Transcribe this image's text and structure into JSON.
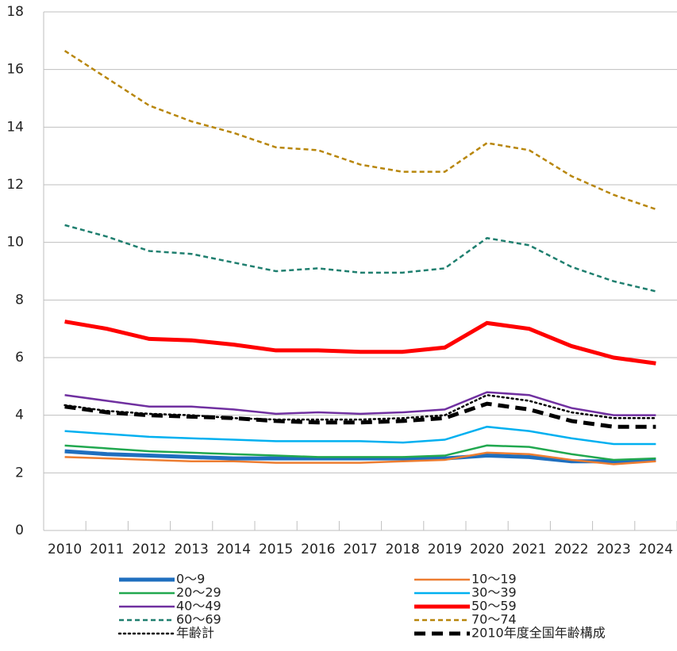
{
  "chart_data": {
    "type": "line",
    "x": [
      "2010",
      "2011",
      "2012",
      "2013",
      "2014",
      "2015",
      "2016",
      "2017",
      "2018",
      "2019",
      "2020",
      "2021",
      "2022",
      "2023",
      "2024"
    ],
    "ylim": [
      0,
      18
    ],
    "yticks": [
      0,
      2,
      4,
      6,
      8,
      10,
      12,
      14,
      16,
      18
    ],
    "grid": true,
    "series": [
      {
        "name": "0～9",
        "color": "#1f6fbf",
        "style": "solid",
        "weight": "thick",
        "values": [
          2.75,
          2.65,
          2.6,
          2.55,
          2.5,
          2.5,
          2.5,
          2.5,
          2.5,
          2.5,
          2.6,
          2.55,
          2.4,
          2.4,
          2.45
        ]
      },
      {
        "name": "10～19",
        "color": "#ed7d31",
        "style": "solid",
        "weight": "normal",
        "values": [
          2.55,
          2.5,
          2.45,
          2.4,
          2.4,
          2.35,
          2.35,
          2.35,
          2.4,
          2.45,
          2.7,
          2.65,
          2.45,
          2.3,
          2.4
        ]
      },
      {
        "name": "20～29",
        "color": "#21a84f",
        "style": "solid",
        "weight": "normal",
        "values": [
          2.95,
          2.85,
          2.75,
          2.7,
          2.65,
          2.6,
          2.55,
          2.55,
          2.55,
          2.6,
          2.95,
          2.9,
          2.65,
          2.45,
          2.5
        ]
      },
      {
        "name": "30～39",
        "color": "#00b0f0",
        "style": "solid",
        "weight": "normal",
        "values": [
          3.45,
          3.35,
          3.25,
          3.2,
          3.15,
          3.1,
          3.1,
          3.1,
          3.05,
          3.15,
          3.6,
          3.45,
          3.2,
          3.0,
          3.0
        ]
      },
      {
        "name": "40～49",
        "color": "#7030a0",
        "style": "solid",
        "weight": "normal",
        "values": [
          4.7,
          4.5,
          4.3,
          4.3,
          4.2,
          4.05,
          4.1,
          4.05,
          4.1,
          4.2,
          4.8,
          4.7,
          4.25,
          4.0,
          4.0
        ]
      },
      {
        "name": "50～59",
        "color": "#ff0000",
        "style": "solid",
        "weight": "thick",
        "values": [
          7.25,
          7.0,
          6.65,
          6.6,
          6.45,
          6.25,
          6.25,
          6.2,
          6.2,
          6.35,
          7.2,
          7.0,
          6.4,
          6.0,
          5.8
        ]
      },
      {
        "name": "60～69",
        "color": "#1f7f6f",
        "style": "dashed",
        "weight": "normal",
        "values": [
          10.6,
          10.2,
          9.7,
          9.6,
          9.3,
          9.0,
          9.1,
          8.95,
          8.95,
          9.1,
          10.15,
          9.9,
          9.15,
          8.65,
          8.3
        ]
      },
      {
        "name": "70～74",
        "color": "#b8860b",
        "style": "dashed",
        "weight": "normal",
        "values": [
          16.65,
          15.7,
          14.75,
          14.2,
          13.8,
          13.3,
          13.2,
          12.7,
          12.45,
          12.45,
          13.45,
          13.2,
          12.3,
          11.65,
          11.15
        ]
      },
      {
        "name": "年齢計",
        "color": "#000000",
        "style": "dotted",
        "weight": "normal",
        "values": [
          4.35,
          4.15,
          4.05,
          4.0,
          3.9,
          3.85,
          3.85,
          3.85,
          3.9,
          4.0,
          4.7,
          4.5,
          4.1,
          3.9,
          3.9
        ]
      },
      {
        "name": "2010年度全国年齢構成",
        "color": "#000000",
        "style": "dashed",
        "weight": "thick",
        "values": [
          4.3,
          4.1,
          4.0,
          3.95,
          3.9,
          3.8,
          3.75,
          3.75,
          3.8,
          3.9,
          4.4,
          4.2,
          3.8,
          3.6,
          3.6
        ]
      }
    ]
  }
}
